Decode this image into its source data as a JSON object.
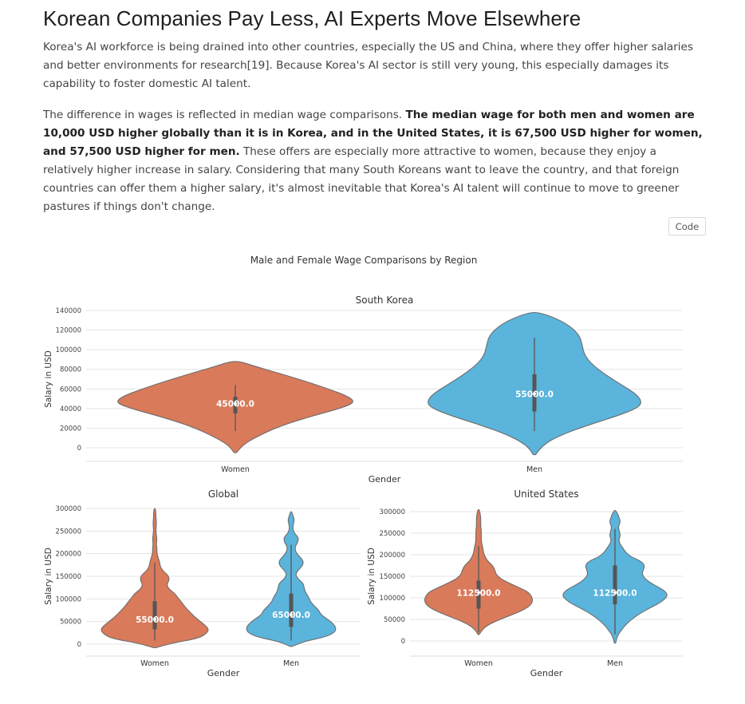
{
  "heading": "Korean Companies Pay Less, AI Experts Move Elsewhere",
  "paragraph1": "Korea's AI workforce is being drained into other countries, especially the US and China, where they offer higher salaries and better environments for research[19]. Because Korea's AI sector is still very young, this especially damages its capability to foster domestic AI talent.",
  "paragraph2": {
    "lead": "The difference in wages is reflected in median wage comparisons. ",
    "bold": "The median wage for both men and women are 10,000 USD higher globally than it is in Korea, and in the United States, it is 67,500 USD higher for women, and 57,500 USD higher for men.",
    "tail": " These offers are especially more attractive to women, because they enjoy a relatively higher increase in salary. Considering that many South Koreans want to leave the country, and that foreign countries can offer them a higher salary, it's almost inevitable that Korea's AI talent will continue to move to greener pastures if things don't change."
  },
  "code_button": "Code",
  "colors": {
    "women": "#d97a5a",
    "men": "#5ab4db"
  },
  "chart_data": {
    "type": "violin",
    "title": "Male and Female Wage Comparisons by Region",
    "panels": [
      {
        "title": "South Korea",
        "xlabel": "Gender",
        "ylabel": "Salary in USD",
        "categories": [
          "Women",
          "Men"
        ],
        "yticks": [
          0,
          20000,
          40000,
          60000,
          80000,
          100000,
          120000,
          140000
        ],
        "ylim": [
          -15000,
          145000
        ],
        "medians": [
          45000,
          55000
        ],
        "median_labels": [
          "45000.0",
          "55000.0"
        ],
        "quartiles": [
          [
            35000,
            52000
          ],
          [
            37000,
            75000
          ]
        ],
        "whiskers": [
          [
            17000,
            64000
          ],
          [
            17000,
            112000
          ]
        ],
        "density": [
          {
            "y": [
              -5000,
              3000,
              12000,
              22000,
              32000,
              40000,
              46000,
              52000,
              60000,
              70000,
              78000,
              84000,
              88000
            ],
            "w": [
              0.01,
              0.06,
              0.19,
              0.37,
              0.63,
              0.87,
              1.0,
              0.95,
              0.78,
              0.53,
              0.31,
              0.14,
              0.04
            ]
          },
          {
            "y": [
              -7000,
              2000,
              12000,
              22000,
              32000,
              40000,
              46000,
              54000,
              64000,
              74000,
              84000,
              94000,
              104000,
              114000,
              124000,
              132000,
              138000
            ],
            "w": [
              0.01,
              0.06,
              0.2,
              0.42,
              0.68,
              0.85,
              0.9,
              0.86,
              0.73,
              0.6,
              0.49,
              0.42,
              0.4,
              0.38,
              0.3,
              0.18,
              0.04
            ]
          }
        ]
      },
      {
        "title": "Global",
        "xlabel": "Gender",
        "ylabel": "Salary in USD",
        "categories": [
          "Women",
          "Men"
        ],
        "yticks": [
          0,
          50000,
          100000,
          150000,
          200000,
          250000,
          300000
        ],
        "ylim": [
          -20000,
          305000
        ],
        "medians": [
          55000,
          65000
        ],
        "median_labels": [
          "55000.0",
          "65000.0"
        ],
        "quartiles": [
          [
            33000,
            95000
          ],
          [
            38000,
            112000
          ]
        ],
        "whiskers": [
          [
            8000,
            180000
          ],
          [
            8000,
            220000
          ]
        ],
        "density": [
          {
            "y": [
              -8000,
              2000,
              12000,
              22000,
              32000,
              42000,
              52000,
              62000,
              72000,
              82000,
              92000,
              102000,
              112000,
              122000,
              132000,
              142000,
              152000,
              162000,
              172000,
              182000,
              192000,
              202000,
              212000,
              222000,
              232000,
              242000,
              252000,
              262000,
              272000,
              282000,
              292000,
              300000
            ],
            "w": [
              0.02,
              0.3,
              0.78,
              0.94,
              1.0,
              0.93,
              0.82,
              0.72,
              0.64,
              0.56,
              0.5,
              0.43,
              0.37,
              0.26,
              0.22,
              0.27,
              0.25,
              0.15,
              0.1,
              0.09,
              0.06,
              0.04,
              0.04,
              0.03,
              0.04,
              0.03,
              0.02,
              0.03,
              0.03,
              0.02,
              0.02,
              0.01
            ]
          },
          {
            "y": [
              -5000,
              5000,
              15000,
              25000,
              35000,
              45000,
              55000,
              65000,
              75000,
              85000,
              95000,
              105000,
              115000,
              125000,
              135000,
              145000,
              155000,
              165000,
              175000,
              185000,
              195000,
              205000,
              215000,
              225000,
              235000,
              245000,
              255000,
              265000,
              275000,
              285000,
              293000
            ],
            "w": [
              0.02,
              0.2,
              0.6,
              0.8,
              0.83,
              0.78,
              0.67,
              0.55,
              0.51,
              0.42,
              0.35,
              0.32,
              0.26,
              0.24,
              0.22,
              0.12,
              0.08,
              0.14,
              0.22,
              0.22,
              0.14,
              0.08,
              0.07,
              0.12,
              0.14,
              0.06,
              0.03,
              0.04,
              0.06,
              0.03,
              0.01
            ]
          }
        ]
      },
      {
        "title": "United States",
        "xlabel": "Gender",
        "ylabel": "Salary in USD",
        "categories": [
          "Women",
          "Men"
        ],
        "yticks": [
          0,
          50000,
          100000,
          150000,
          200000,
          250000,
          300000
        ],
        "ylim": [
          -15000,
          320000
        ],
        "medians": [
          112500,
          112500
        ],
        "median_labels": [
          "112500.0",
          "112500.0"
        ],
        "quartiles": [
          [
            75000,
            140000
          ],
          [
            85000,
            175000
          ]
        ],
        "whiskers": [
          [
            20000,
            220000
          ],
          [
            15000,
            260000
          ]
        ],
        "density": [
          {
            "y": [
              15000,
              25000,
              35000,
              45000,
              55000,
              65000,
              75000,
              85000,
              95000,
              105000,
              115000,
              125000,
              135000,
              145000,
              155000,
              165000,
              175000,
              185000,
              195000,
              205000,
              215000,
              225000,
              235000,
              245000,
              255000,
              265000,
              275000,
              285000,
              295000,
              305000
            ],
            "w": [
              0.01,
              0.06,
              0.15,
              0.3,
              0.5,
              0.7,
              0.87,
              0.97,
              1.0,
              0.97,
              0.9,
              0.72,
              0.55,
              0.4,
              0.32,
              0.3,
              0.26,
              0.17,
              0.12,
              0.09,
              0.08,
              0.06,
              0.05,
              0.05,
              0.05,
              0.04,
              0.04,
              0.04,
              0.03,
              0.01
            ]
          },
          {
            "y": [
              -5000,
              5000,
              15000,
              25000,
              35000,
              45000,
              55000,
              65000,
              75000,
              85000,
              95000,
              105000,
              115000,
              125000,
              135000,
              145000,
              155000,
              165000,
              175000,
              185000,
              195000,
              205000,
              215000,
              225000,
              235000,
              245000,
              255000,
              265000,
              275000,
              285000,
              295000,
              303000
            ],
            "w": [
              0.01,
              0.03,
              0.06,
              0.12,
              0.18,
              0.26,
              0.36,
              0.48,
              0.62,
              0.78,
              0.9,
              0.97,
              0.93,
              0.8,
              0.65,
              0.55,
              0.5,
              0.52,
              0.55,
              0.48,
              0.3,
              0.2,
              0.15,
              0.09,
              0.07,
              0.1,
              0.08,
              0.06,
              0.1,
              0.08,
              0.05,
              0.01
            ]
          }
        ]
      }
    ]
  }
}
